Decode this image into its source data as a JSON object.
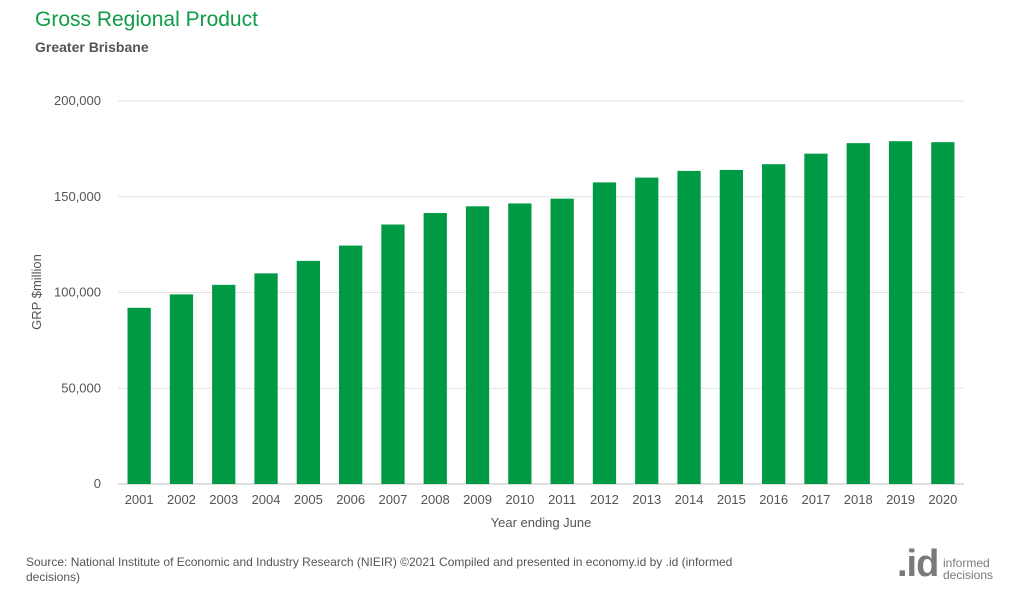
{
  "header": {
    "title": "Gross Regional Product",
    "subtitle": "Greater Brisbane"
  },
  "footer": {
    "source": "Source: National Institute of Economic and Industry Research (NIEIR) ©2021 Compiled and presented in economy.id by .id (informed decisions)",
    "logo_mark": ".id",
    "logo_line1": "informed",
    "logo_line2": "decisions"
  },
  "colors": {
    "bar": "#009a44",
    "title": "#0f9b48",
    "grid": "#e3e3e3"
  },
  "chart_data": {
    "type": "bar",
    "title": "Gross Regional Product",
    "subtitle": "Greater Brisbane",
    "xlabel": "Year ending June",
    "ylabel": "GRP $million",
    "categories": [
      "2001",
      "2002",
      "2003",
      "2004",
      "2005",
      "2006",
      "2007",
      "2008",
      "2009",
      "2010",
      "2011",
      "2012",
      "2013",
      "2014",
      "2015",
      "2016",
      "2017",
      "2018",
      "2019",
      "2020"
    ],
    "values": [
      92000,
      99000,
      104000,
      110000,
      116500,
      124500,
      135500,
      141500,
      145000,
      146500,
      149000,
      157500,
      160000,
      163500,
      164000,
      167000,
      172500,
      178000,
      179000,
      178500
    ],
    "ylim": [
      0,
      200000
    ],
    "yticks": [
      0,
      50000,
      100000,
      150000,
      200000
    ],
    "ytick_labels": [
      "0",
      "50,000",
      "100,000",
      "150,000",
      "200,000"
    ],
    "grid": true,
    "legend": "none"
  }
}
